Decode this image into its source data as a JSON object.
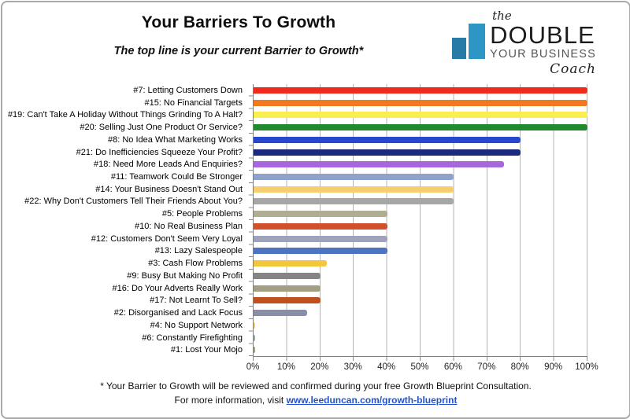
{
  "header": {
    "title": "Your Barriers To Growth",
    "subtitle": "The top line is your current Barrier to Growth*"
  },
  "logo": {
    "the": "the",
    "double": "DOUBLE",
    "your_business": "YOUR BUSINESS",
    "coach": "Coach",
    "bar_color_short": "#287ba6",
    "bar_color_tall": "#2d96c4"
  },
  "chart_data": {
    "type": "bar",
    "orientation": "horizontal",
    "title": "Your Barriers To Growth",
    "xlabel": "",
    "ylabel": "",
    "xlim": [
      0,
      100
    ],
    "grid": true,
    "x_tick_labels": [
      "0%",
      "10%",
      "20%",
      "30%",
      "40%",
      "50%",
      "60%",
      "70%",
      "80%",
      "90%",
      "100%"
    ],
    "categories": [
      "#7: Letting Customers Down",
      "#15: No Financial Targets",
      "#19: Can't Take A Holiday Without Things Grinding To A Halt?",
      "#20: Selling Just One Product Or Service?",
      "#8: No Idea What Marketing Works",
      "#21: Do Inefficiencies Squeeze Your Profit?",
      "#18: Need More Leads And Enquiries?",
      "#11: Teamwork Could Be Stronger",
      "#14: Your Business Doesn't Stand Out",
      "#22: Why Don't Customers Tell Their Friends About You?",
      "#5: People Problems",
      "#10: No Real Business Plan",
      "#12: Customers Don't Seem Very Loyal",
      "#13: Lazy Salespeople",
      "#3: Cash Flow Problems",
      "#9: Busy But Making No Profit",
      "#16: Do Your Adverts Really Work",
      "#17: Not Learnt To Sell?",
      "#2: Disorganised and Lack Focus",
      "#4: No Support Network",
      "#6: Constantly Firefighting",
      "#1: Lost Your Mojo"
    ],
    "values": [
      100,
      100,
      100,
      100,
      80,
      80,
      75,
      60,
      60,
      60,
      40,
      40,
      40,
      40,
      22,
      20,
      20,
      20,
      16,
      0.5,
      0.5,
      0.5
    ],
    "bar_colors": [
      "#ee2b1c",
      "#f2791f",
      "#fbee4f",
      "#218a2f",
      "#2747ce",
      "#1b2a7e",
      "#a566de",
      "#8fa2cc",
      "#f6ce6e",
      "#a6a6a6",
      "#afad92",
      "#d1512b",
      "#9ea2ba",
      "#4c74c0",
      "#f2c73e",
      "#858585",
      "#a29f82",
      "#c1501f",
      "#8a8ea6",
      "#f6ce6e",
      "#a6a6a6",
      "#a29f82"
    ]
  },
  "footer": {
    "note": "* Your Barrier to Growth will be reviewed and confirmed during your free Growth Blueprint Consultation.",
    "info_prefix": "For more information, visit ",
    "link": "www.leeduncan.com/growth-blueprint",
    "link_color": "#2353cc"
  }
}
